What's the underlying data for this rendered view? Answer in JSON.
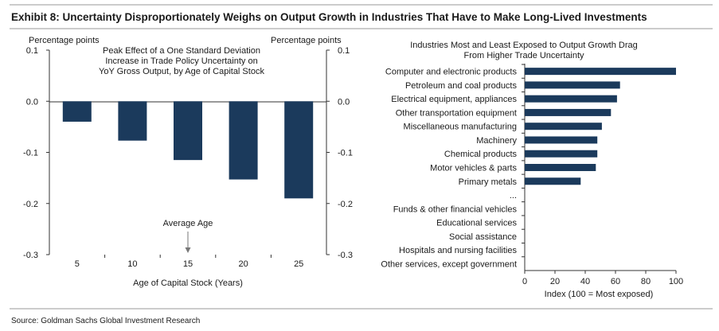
{
  "exhibit_title": "Exhibit 8: Uncertainty Disproportionately Weighs on Output Growth in Industries That Have to Make Long-Lived Investments",
  "source": "Source: Goldman Sachs Global Investment Research",
  "colors": {
    "bar": "#1b3a5c",
    "axis": "#333333",
    "rule": "#9a9a9a",
    "annotation_arrow": "#777777"
  },
  "chart_data": [
    {
      "type": "bar",
      "title_lines": [
        "Peak Effect of a One Standard Deviation",
        "Increase in Trade Policy Uncertainty on",
        "YoY Gross Output, by Age of Capital Stock"
      ],
      "ylabel_left": "Percentage points",
      "ylabel_right": "Percentage points",
      "xlabel": "Age of Capital Stock (Years)",
      "categories": [
        "5",
        "10",
        "15",
        "20",
        "25"
      ],
      "values": [
        -0.04,
        -0.077,
        -0.115,
        -0.153,
        -0.19
      ],
      "ylim": [
        -0.3,
        0.1
      ],
      "yticks": [
        0.1,
        0.0,
        -0.1,
        -0.2,
        -0.3
      ],
      "ytick_labels": [
        "0.1",
        "0.0",
        "-0.1",
        "-0.2",
        "-0.3"
      ],
      "annotation": {
        "text": "Average Age",
        "category": "15"
      }
    },
    {
      "type": "bar",
      "orientation": "horizontal",
      "title_lines": [
        "Industries Most and Least Exposed to Output Growth Drag",
        "From Higher Trade Uncertainty"
      ],
      "xlabel": "Index (100 = Most exposed)",
      "xlim": [
        0,
        100
      ],
      "xticks": [
        0,
        20,
        40,
        60,
        80,
        100
      ],
      "xtick_labels": [
        "0",
        "20",
        "40",
        "60",
        "80",
        "100"
      ],
      "categories": [
        "Computer and electronic products",
        "Petroleum and coal products",
        "Electrical equipment, appliances",
        "Other transportation equipment",
        "Miscellaneous manufacturing",
        "Machinery",
        "Chemical products",
        "Motor vehicles & parts",
        "Primary metals",
        "...",
        "Funds & other financial vehicles",
        "Educational services",
        "Social assistance",
        "Hospitals and nursing facilities",
        "Other services, except government"
      ],
      "values": [
        100,
        63,
        61,
        57,
        51,
        48,
        48,
        47,
        37,
        null,
        0,
        0,
        0,
        0,
        0
      ]
    }
  ]
}
